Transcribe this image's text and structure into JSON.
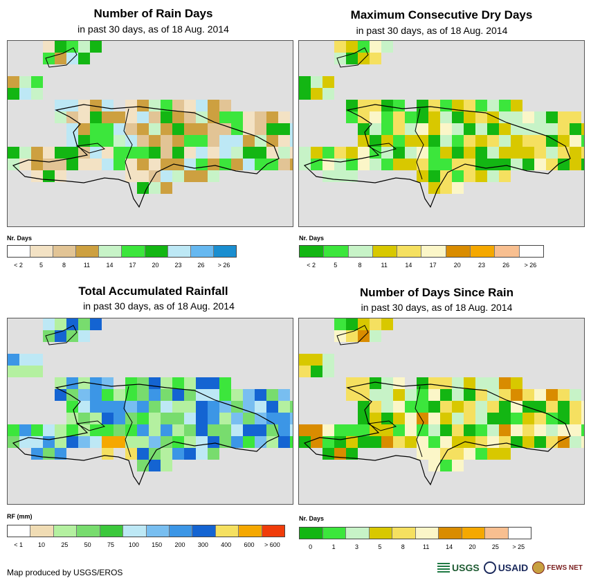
{
  "panels": [
    {
      "id": "rain-days",
      "title": "Number of Rain Days",
      "subtitle": "in past 30 days, as of 18 Aug. 2014",
      "legend_title": "Nr. Days",
      "legend_colors": [
        "#ffffff",
        "#f3e2c4",
        "#e2c495",
        "#cda040",
        "#c7f3c7",
        "#3ce63c",
        "#13b613",
        "#bde8f5",
        "#66b8f0",
        "#1a8ed0"
      ],
      "legend_labels": [
        "< 2",
        "5",
        "8",
        "11",
        "14",
        "17",
        "20",
        "23",
        "26",
        "> 26"
      ],
      "label_mode": "center"
    },
    {
      "id": "max-dry-days",
      "title": "Maximum Consecutive Dry Days",
      "subtitle": "in past 30 days, as of 18 Aug. 2014",
      "legend_title": "Nr. Days",
      "legend_colors": [
        "#13b613",
        "#3ce63c",
        "#c7f3c7",
        "#d8c800",
        "#f5e060",
        "#fbf6c8",
        "#d98c00",
        "#f5a800",
        "#f8bf90",
        "#ffffff"
      ],
      "legend_labels": [
        "< 2",
        "5",
        "8",
        "11",
        "14",
        "17",
        "20",
        "23",
        "26",
        "> 26"
      ],
      "label_mode": "center"
    },
    {
      "id": "total-rainfall",
      "title": "Total Accumulated Rainfall",
      "subtitle": "in past 30 days, as of 18 Aug. 2014",
      "legend_title": "RF (mm)",
      "legend_colors": [
        "#ffffff",
        "#f0dcb4",
        "#b4f0a0",
        "#78dc6e",
        "#3cc83c",
        "#bde8f5",
        "#78bef0",
        "#3c96e6",
        "#1464d2",
        "#f5e060",
        "#f5a800",
        "#f03c0a"
      ],
      "legend_labels": [
        "< 1",
        "10",
        "25",
        "50",
        "75",
        "100",
        "150",
        "200",
        "300",
        "400",
        "600",
        "> 600"
      ],
      "label_mode": "center"
    },
    {
      "id": "days-since-rain",
      "title": "Number of Days Since Rain",
      "subtitle": "in past 30 days, as of 18 Aug. 2014",
      "legend_title": "Nr. Days",
      "legend_colors": [
        "#13b613",
        "#3ce63c",
        "#c7f3c7",
        "#d8c800",
        "#f5e060",
        "#fbf6c8",
        "#d98c00",
        "#f5a800",
        "#f8bf90",
        "#ffffff"
      ],
      "legend_labels": [
        "0",
        "1",
        "3",
        "5",
        "8",
        "11",
        "14",
        "20",
        "25",
        "> 25"
      ],
      "label_mode": "center"
    }
  ],
  "credit": "Map produced by USGS/EROS",
  "logos": {
    "usgs": "USGS",
    "usaid": "USAID",
    "fews": "FEWS NET"
  }
}
